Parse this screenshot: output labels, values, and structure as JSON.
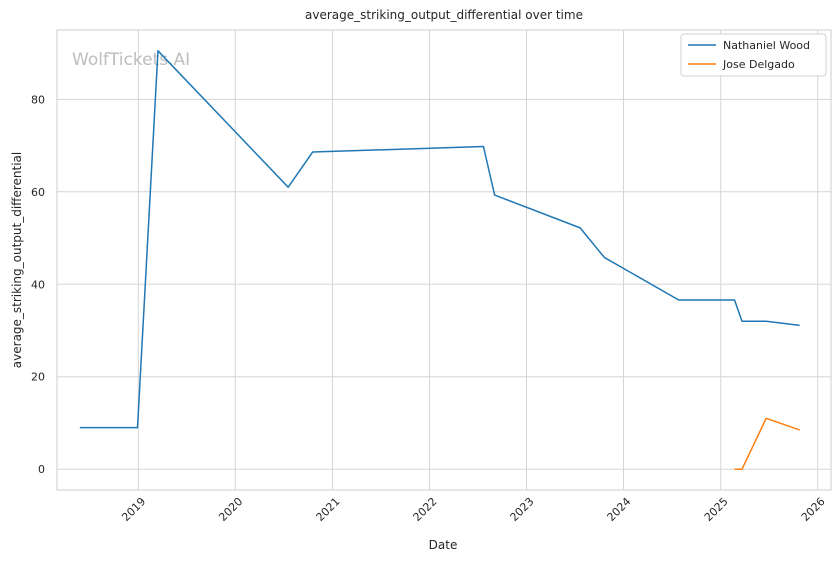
{
  "chart_data": {
    "type": "line",
    "title": "average_striking_output_differential over time",
    "xlabel": "Date",
    "ylabel": "average_striking_output_differential",
    "watermark": "WolfTickets.AI",
    "x_ticks": [
      "2019",
      "2020",
      "2021",
      "2022",
      "2023",
      "2024",
      "2025",
      "2026"
    ],
    "y_ticks": [
      0,
      20,
      40,
      60,
      80
    ],
    "xlim": [
      "2018-03-01",
      "2026-02-20"
    ],
    "ylim": [
      -4.5,
      95
    ],
    "grid": true,
    "legend_position": "top-right",
    "series": [
      {
        "name": "Nathaniel Wood",
        "color": "#1f77b4",
        "points": [
          [
            "2018-05-26",
            9
          ],
          [
            "2018-12-29",
            9
          ],
          [
            "2019-03-16",
            90.5
          ],
          [
            "2020-07-18",
            61
          ],
          [
            "2020-10-18",
            68.6
          ],
          [
            "2022-07-23",
            69.8
          ],
          [
            "2022-09-03",
            59.3
          ],
          [
            "2023-07-22",
            52.2
          ],
          [
            "2023-10-21",
            45.8
          ],
          [
            "2024-07-27",
            36.6
          ],
          [
            "2025-02-22",
            36.6
          ],
          [
            "2025-03-22",
            32
          ],
          [
            "2025-06-21",
            32
          ],
          [
            "2025-10-25",
            31.1
          ]
        ]
      },
      {
        "name": "Jose Delgado",
        "color": "#ff7f0e",
        "points": [
          [
            "2025-02-22",
            0
          ],
          [
            "2025-03-22",
            0
          ],
          [
            "2025-06-21",
            11
          ],
          [
            "2025-10-25",
            8.5
          ]
        ]
      }
    ]
  }
}
